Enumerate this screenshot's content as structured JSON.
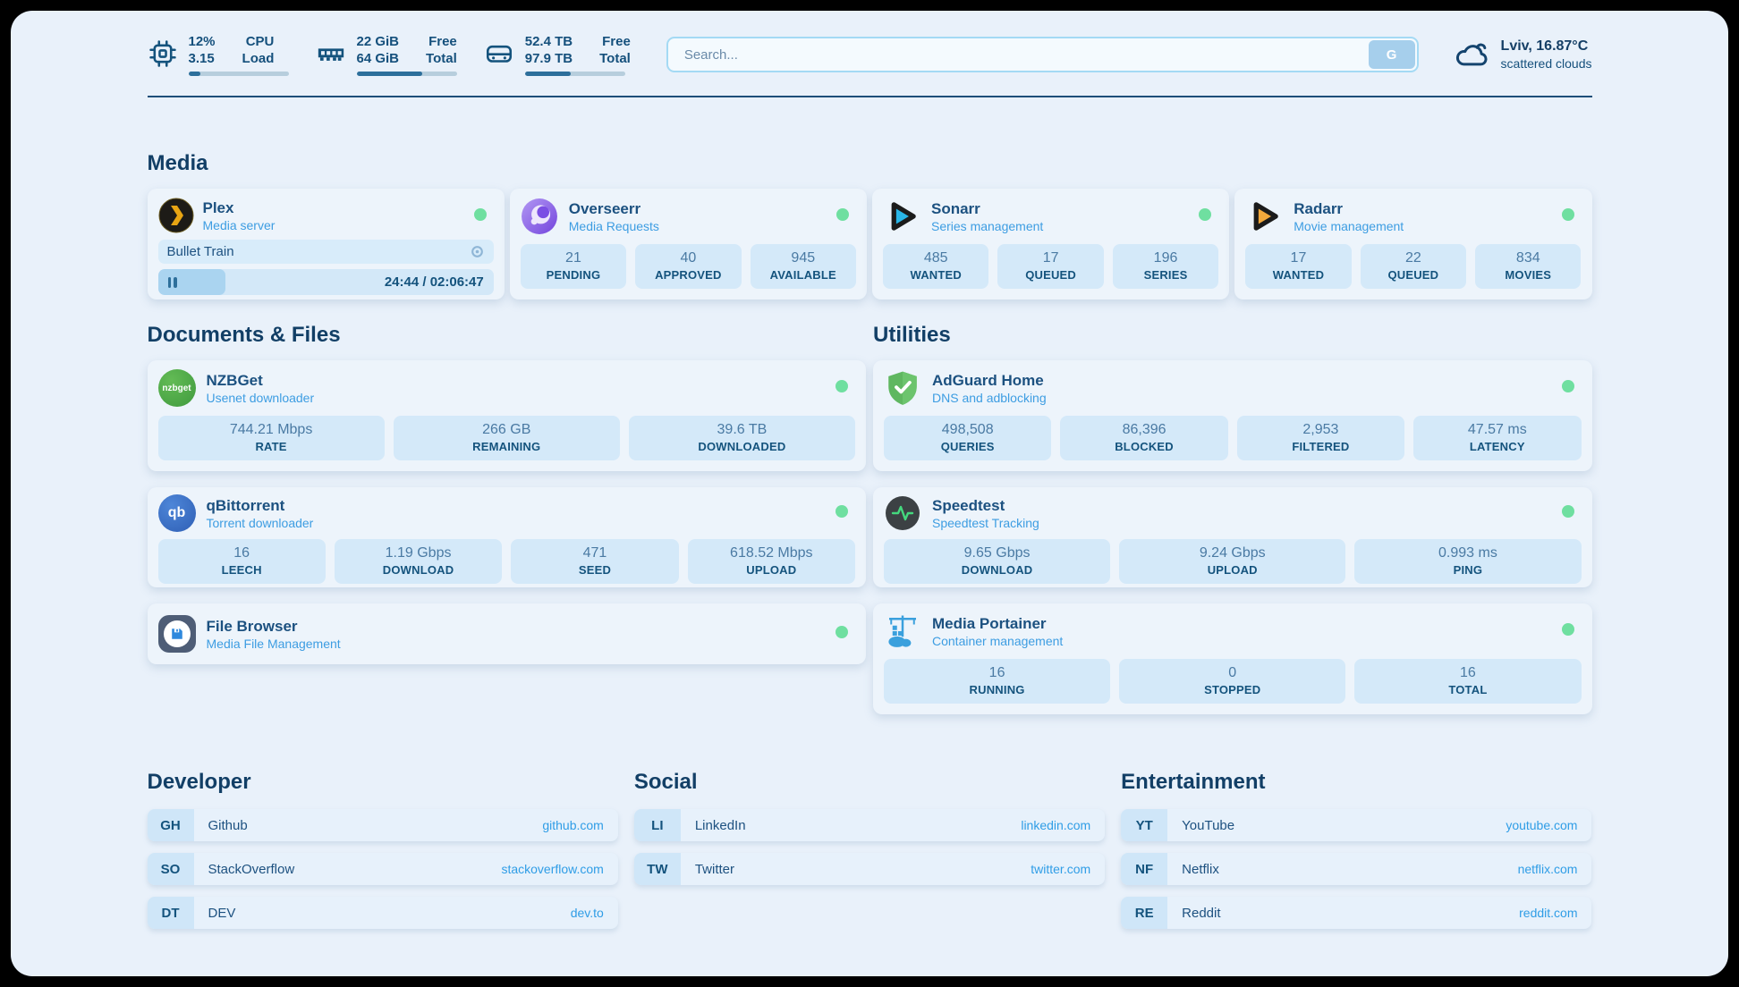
{
  "colors": {
    "page_bg": "#e9f1fa",
    "card_bg": "#edf4fb",
    "tile_bg": "#d4e9f9",
    "navy": "#14537d",
    "subtitle_blue": "#3d9de2",
    "link_blue": "#2f9de6",
    "status_online": "#6fdfa0",
    "progress_fill": "#2d6f9b",
    "plex_gold": "#e8a513",
    "sonarr_cyan": "#29b6e8",
    "radarr_amber": "#f2a83b",
    "adguard_green": "#5fb760",
    "speedtest_pulse": "#44d87e"
  },
  "header": {
    "system": [
      {
        "icon": "cpu-icon",
        "value1": "12%",
        "value2": "3.15",
        "label1": "CPU",
        "label2": "Load",
        "progress": 12
      },
      {
        "icon": "ram-icon",
        "value1": "22 GiB",
        "value2": "64 GiB",
        "label1": "Free",
        "label2": "Total",
        "progress": 66
      },
      {
        "icon": "disk-icon",
        "value1": "52.4 TB",
        "value2": "97.9 TB",
        "label1": "Free",
        "label2": "Total",
        "progress": 46
      }
    ],
    "search": {
      "placeholder": "Search...",
      "button_label": "G"
    },
    "weather": {
      "icon": "cloud-icon",
      "location_temp": "Lviv, 16.87°C",
      "condition": "scattered clouds"
    }
  },
  "media": {
    "title": "Media",
    "plex": {
      "icon": "plex-icon",
      "title": "Plex",
      "subtitle": "Media server",
      "status": "online",
      "player": {
        "track": "Bullet Train",
        "time": "24:44 / 02:06:47",
        "progress": 20
      }
    },
    "overseerr": {
      "icon": "overseerr-icon",
      "title": "Overseerr",
      "subtitle": "Media Requests",
      "status": "online",
      "stats": [
        {
          "value": "21",
          "label": "PENDING"
        },
        {
          "value": "40",
          "label": "APPROVED"
        },
        {
          "value": "945",
          "label": "AVAILABLE"
        }
      ]
    },
    "sonarr": {
      "icon": "sonarr-icon",
      "title": "Sonarr",
      "subtitle": "Series management",
      "status": "online",
      "stats": [
        {
          "value": "485",
          "label": "WANTED"
        },
        {
          "value": "17",
          "label": "QUEUED"
        },
        {
          "value": "196",
          "label": "SERIES"
        }
      ]
    },
    "radarr": {
      "icon": "radarr-icon",
      "title": "Radarr",
      "subtitle": "Movie management",
      "status": "online",
      "stats": [
        {
          "value": "17",
          "label": "WANTED"
        },
        {
          "value": "22",
          "label": "QUEUED"
        },
        {
          "value": "834",
          "label": "MOVIES"
        }
      ]
    }
  },
  "documents": {
    "title": "Documents & Files",
    "nzbget": {
      "icon": "nzbget-icon",
      "icon_text": "nzbget",
      "title": "NZBGet",
      "subtitle": "Usenet downloader",
      "status": "online",
      "stats": [
        {
          "value": "744.21 Mbps",
          "label": "RATE"
        },
        {
          "value": "266 GB",
          "label": "REMAINING"
        },
        {
          "value": "39.6 TB",
          "label": "DOWNLOADED"
        }
      ]
    },
    "qbittorrent": {
      "icon": "qbittorrent-icon",
      "icon_text": "qb",
      "title": "qBittorrent",
      "subtitle": "Torrent downloader",
      "status": "online",
      "stats": [
        {
          "value": "16",
          "label": "LEECH"
        },
        {
          "value": "1.19 Gbps",
          "label": "DOWNLOAD"
        },
        {
          "value": "471",
          "label": "SEED"
        },
        {
          "value": "618.52 Mbps",
          "label": "UPLOAD"
        }
      ]
    },
    "filebrowser": {
      "icon": "filebrowser-icon",
      "title": "File Browser",
      "subtitle": "Media File Management",
      "status": "online"
    }
  },
  "utilities": {
    "title": "Utilities",
    "adguard": {
      "icon": "adguard-icon",
      "title": "AdGuard Home",
      "subtitle": "DNS and adblocking",
      "status": "online",
      "stats": [
        {
          "value": "498,508",
          "label": "QUERIES"
        },
        {
          "value": "86,396",
          "label": "BLOCKED"
        },
        {
          "value": "2,953",
          "label": "FILTERED"
        },
        {
          "value": "47.57 ms",
          "label": "LATENCY"
        }
      ]
    },
    "speedtest": {
      "icon": "speedtest-icon",
      "title": "Speedtest",
      "subtitle": "Speedtest Tracking",
      "status": "online",
      "stats": [
        {
          "value": "9.65 Gbps",
          "label": "DOWNLOAD"
        },
        {
          "value": "9.24 Gbps",
          "label": "UPLOAD"
        },
        {
          "value": "0.993 ms",
          "label": "PING"
        }
      ]
    },
    "portainer": {
      "icon": "portainer-icon",
      "title": "Media Portainer",
      "subtitle": "Container management",
      "status": "online",
      "stats": [
        {
          "value": "16",
          "label": "RUNNING"
        },
        {
          "value": "0",
          "label": "STOPPED"
        },
        {
          "value": "16",
          "label": "TOTAL"
        }
      ]
    }
  },
  "links": {
    "developer": {
      "title": "Developer",
      "items": [
        {
          "abbr": "GH",
          "name": "Github",
          "url": "github.com"
        },
        {
          "abbr": "SO",
          "name": "StackOverflow",
          "url": "stackoverflow.com"
        },
        {
          "abbr": "DT",
          "name": "DEV",
          "url": "dev.to"
        }
      ]
    },
    "social": {
      "title": "Social",
      "items": [
        {
          "abbr": "LI",
          "name": "LinkedIn",
          "url": "linkedin.com"
        },
        {
          "abbr": "TW",
          "name": "Twitter",
          "url": "twitter.com"
        }
      ]
    },
    "entertainment": {
      "title": "Entertainment",
      "items": [
        {
          "abbr": "YT",
          "name": "YouTube",
          "url": "youtube.com"
        },
        {
          "abbr": "NF",
          "name": "Netflix",
          "url": "netflix.com"
        },
        {
          "abbr": "RE",
          "name": "Reddit",
          "url": "reddit.com"
        }
      ]
    }
  }
}
